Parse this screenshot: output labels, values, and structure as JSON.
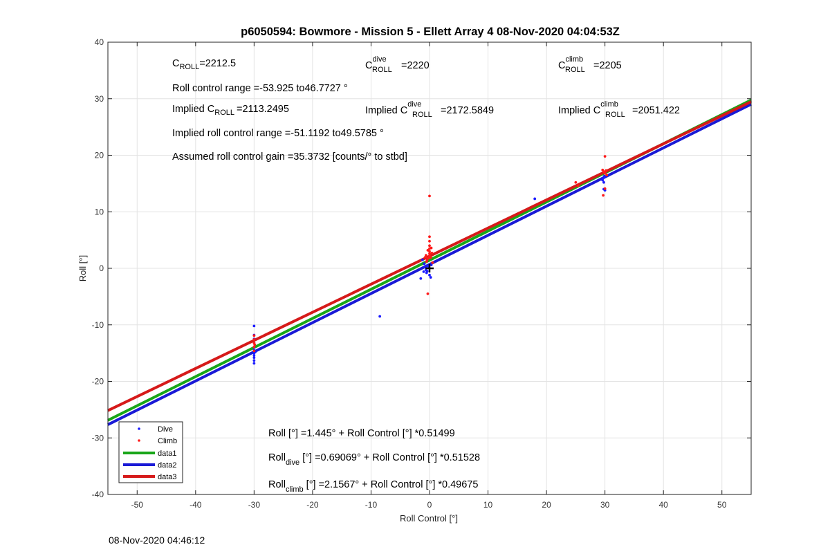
{
  "chart_data": {
    "type": "scatter",
    "title": "p6050594: Bowmore - Mission 5 - Ellett Array 4 08-Nov-2020 04:04:53Z",
    "xlabel": "Roll Control [°]",
    "ylabel": "Roll [°]",
    "xlim": [
      -55,
      55
    ],
    "ylim": [
      -40,
      40
    ],
    "xticks": [
      -50,
      -40,
      -30,
      -20,
      -10,
      0,
      10,
      20,
      30,
      40,
      50
    ],
    "yticks": [
      -40,
      -30,
      -20,
      -10,
      0,
      10,
      20,
      30,
      40
    ],
    "grid": true,
    "legend_position": "bottom-left",
    "series": [
      {
        "name": "Dive",
        "kind": "points",
        "color": "#1a1aff",
        "points": [
          [
            -30,
            -10.2
          ],
          [
            -30,
            -11.8
          ],
          [
            -30,
            -12.5
          ],
          [
            -30,
            -13.2
          ],
          [
            -30,
            -14.0
          ],
          [
            -30,
            -14.5
          ],
          [
            -30,
            -15.0
          ],
          [
            -30,
            -15.4
          ],
          [
            -30,
            -15.8
          ],
          [
            -30,
            -16.3
          ],
          [
            -30,
            -16.8
          ],
          [
            -29.8,
            -14.8
          ],
          [
            -8.5,
            -8.5
          ],
          [
            -1.2,
            1.5
          ],
          [
            -0.9,
            0.8
          ],
          [
            -0.8,
            0.2
          ],
          [
            -0.6,
            -0.3
          ],
          [
            -0.5,
            -0.8
          ],
          [
            -0.3,
            0.4
          ],
          [
            0,
            -1.2
          ],
          [
            0.2,
            -1.6
          ],
          [
            -0.1,
            0.3
          ],
          [
            -0.4,
            -0.5
          ],
          [
            0.3,
            0.6
          ],
          [
            -1.5,
            -1.8
          ],
          [
            -1.0,
            -0.6
          ],
          [
            18,
            12.3
          ],
          [
            29.6,
            15.6
          ],
          [
            29.7,
            16.0
          ],
          [
            29.8,
            14.0
          ],
          [
            30,
            13.8
          ],
          [
            29.9,
            16.3
          ],
          [
            29.8,
            15.2
          ]
        ]
      },
      {
        "name": "Climb",
        "kind": "points",
        "color": "#ff1a1a",
        "points": [
          [
            -30,
            -11.9
          ],
          [
            -30,
            -12.6
          ],
          [
            -30,
            -13.2
          ],
          [
            -30,
            -13.9
          ],
          [
            -30,
            -14.6
          ],
          [
            -29.9,
            -13.5
          ],
          [
            0,
            12.8
          ],
          [
            0,
            5.6
          ],
          [
            0,
            4.8
          ],
          [
            0,
            4.0
          ],
          [
            0,
            3.5
          ],
          [
            0,
            3.0
          ],
          [
            0,
            2.6
          ],
          [
            0,
            2.2
          ],
          [
            -0.2,
            1.8
          ],
          [
            -0.4,
            1.5
          ],
          [
            0.2,
            1.9
          ],
          [
            0.4,
            2.7
          ],
          [
            -0.6,
            2.3
          ],
          [
            -0.3,
            3.2
          ],
          [
            0.3,
            3.6
          ],
          [
            -0.5,
            1.2
          ],
          [
            0.5,
            1.0
          ],
          [
            -0.7,
            2.0
          ],
          [
            -0.3,
            -4.5
          ],
          [
            25,
            15.2
          ],
          [
            25.4,
            14.6
          ],
          [
            29.6,
            17.4
          ],
          [
            29.8,
            17.1
          ],
          [
            30,
            16.8
          ],
          [
            30.2,
            17.3
          ],
          [
            30,
            19.8
          ],
          [
            29.7,
            12.9
          ],
          [
            30,
            14.1
          ],
          [
            30.3,
            16.5
          ]
        ]
      },
      {
        "name": "",
        "kind": "cross",
        "color": "#000000",
        "points": [
          [
            0,
            0
          ]
        ]
      },
      {
        "name": "data1",
        "kind": "line",
        "color": "#19a619",
        "width": 4,
        "intercept": 1.445,
        "slope": 0.51499
      },
      {
        "name": "data2",
        "kind": "line",
        "color": "#1a1ad6",
        "width": 4,
        "intercept": 0.69069,
        "slope": 0.51528
      },
      {
        "name": "data3",
        "kind": "line",
        "color": "#d61a1a",
        "width": 4,
        "intercept": 2.1567,
        "slope": 0.49675
      }
    ],
    "annotations": {
      "c_roll": {
        "main": "C",
        "sub": "ROLL",
        "value": "=2212.5"
      },
      "c_roll_dive": {
        "main": "C",
        "sup": "dive",
        "sub": "ROLL",
        "value": "=2220"
      },
      "c_roll_climb": {
        "main": "C",
        "sup": "climb",
        "sub": "ROLL",
        "value": "=2205"
      },
      "roll_range": "Roll control range =-53.925 to46.7727 °",
      "implied_c_roll": {
        "main": "Implied C",
        "sub": "ROLL",
        "value": "=2113.2495"
      },
      "implied_c_roll_dive": {
        "main": "Implied C",
        "sup": "dive",
        "sub": "ROLL",
        "value": "=2172.5849"
      },
      "implied_c_roll_climb": {
        "main": "Implied C",
        "sup": "climb",
        "sub": "ROLL",
        "value": "=2051.422"
      },
      "implied_range": "Implied roll control range =-51.1192 to49.5785 °",
      "gain": "Assumed roll control gain =35.3732 [counts/° to stbd]",
      "eq_all": "Roll [°] =1.445° + Roll Control [°] *0.51499",
      "eq_dive": {
        "main": "Roll",
        "sub": "dive",
        "rest": " [°] =0.69069° + Roll Control [°] *0.51528"
      },
      "eq_climb": {
        "main": "Roll",
        "sub": "climb",
        "rest": " [°] =2.1567° + Roll Control [°] *0.49675"
      }
    }
  },
  "footer": {
    "timestamp": "08-Nov-2020 04:46:12"
  }
}
